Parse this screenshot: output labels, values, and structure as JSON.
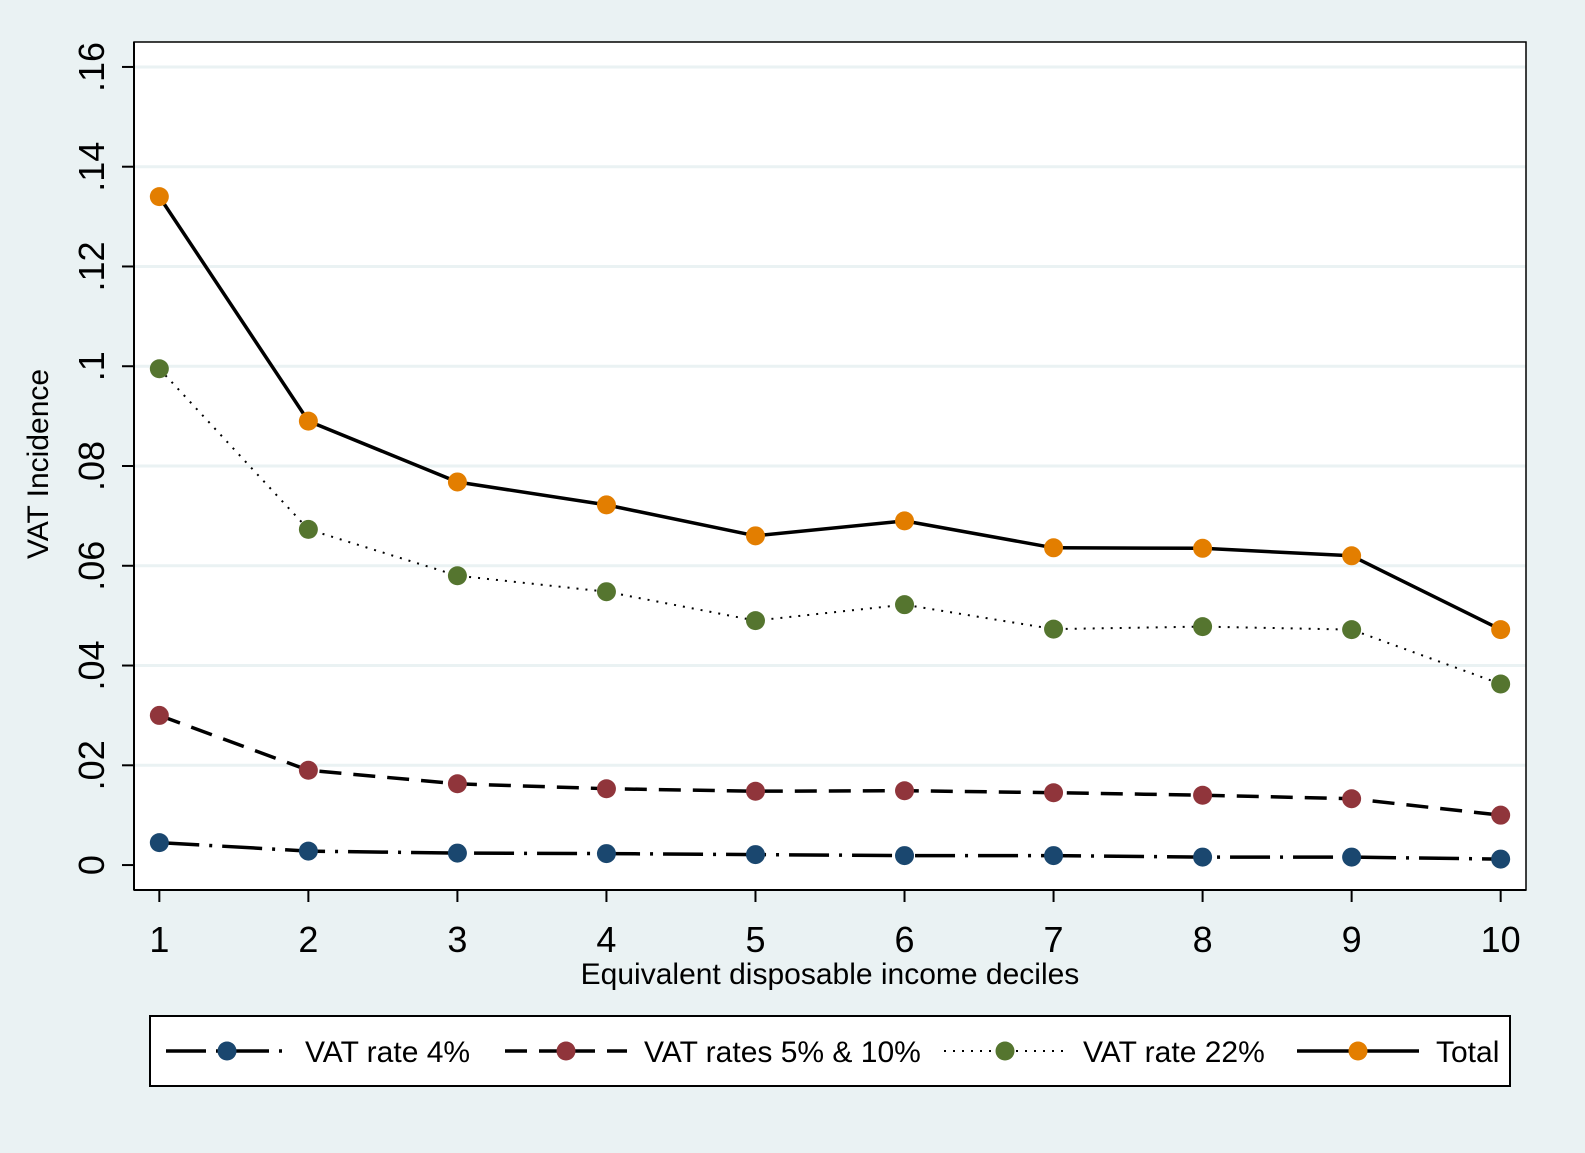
{
  "chart_data": {
    "type": "line",
    "title": "",
    "xlabel": "Equivalent disposable income deciles",
    "ylabel": "VAT Incidence",
    "x": [
      1,
      2,
      3,
      4,
      5,
      6,
      7,
      8,
      9,
      10
    ],
    "x_tick_labels": [
      "1",
      "2",
      "3",
      "4",
      "5",
      "6",
      "7",
      "8",
      "9",
      "10"
    ],
    "xlim": [
      0.83,
      10.17
    ],
    "ylim": [
      -0.005,
      0.165
    ],
    "y_ticks": [
      0,
      0.02,
      0.04,
      0.06,
      0.08,
      0.1,
      0.12,
      0.14,
      0.16
    ],
    "y_tick_labels": [
      "0",
      ".02",
      ".04",
      ".06",
      ".08",
      ".1",
      ".12",
      ".14",
      ".16"
    ],
    "grid": true,
    "legend_position": "bottom",
    "series": [
      {
        "name": "VAT rate 4%",
        "color": "#1a476f",
        "dash": "long-dash-dot",
        "values": [
          0.0045,
          0.0028,
          0.0024,
          0.0023,
          0.0021,
          0.0019,
          0.0019,
          0.0016,
          0.0016,
          0.0012
        ]
      },
      {
        "name": "VAT rates 5% & 10%",
        "color": "#90353b",
        "dash": "dash",
        "values": [
          0.03,
          0.019,
          0.0163,
          0.0153,
          0.0148,
          0.0149,
          0.0145,
          0.014,
          0.0133,
          0.01
        ]
      },
      {
        "name": "VAT rate 22%",
        "color": "#55752f",
        "dash": "dot",
        "values": [
          0.0995,
          0.0673,
          0.058,
          0.0548,
          0.049,
          0.0522,
          0.0473,
          0.0478,
          0.0472,
          0.0363
        ]
      },
      {
        "name": "Total",
        "color": "#e37e00",
        "dash": "solid",
        "values": [
          0.134,
          0.089,
          0.0768,
          0.0722,
          0.066,
          0.069,
          0.0636,
          0.0635,
          0.062,
          0.0472
        ]
      }
    ]
  }
}
